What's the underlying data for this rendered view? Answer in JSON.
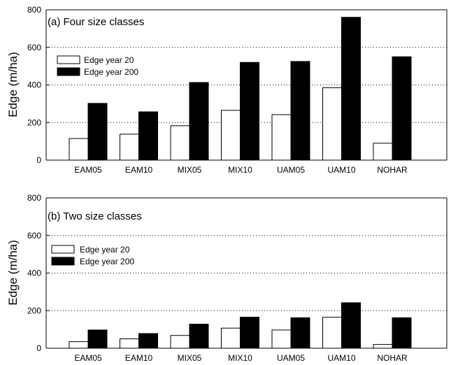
{
  "chart_data": [
    {
      "type": "bar",
      "title": "(a)   Four size classes",
      "xlabel": "",
      "ylabel": "Edge (m/ha)",
      "ylim": [
        0,
        800
      ],
      "yticks": [
        0,
        200,
        400,
        600,
        800
      ],
      "grid": "horizontal dotted",
      "legend_position": "upper-left",
      "categories": [
        "EAM05",
        "EAM10",
        "MIX05",
        "MIX10",
        "UAM05",
        "UAM10",
        "NOHAR"
      ],
      "series": [
        {
          "name": "Edge year 20",
          "color": "#ffffff",
          "values": [
            115,
            138,
            183,
            265,
            242,
            385,
            90
          ]
        },
        {
          "name": "Edge year 200",
          "color": "#000000",
          "values": [
            302,
            257,
            413,
            520,
            525,
            760,
            550
          ]
        }
      ]
    },
    {
      "type": "bar",
      "title": "(b)   Two size classes",
      "xlabel": "",
      "ylabel": "Edge (m/ha)",
      "ylim": [
        0,
        800
      ],
      "yticks": [
        0,
        200,
        400,
        600,
        800
      ],
      "grid": "horizontal dotted",
      "legend_position": "upper-left",
      "categories": [
        "EAM05",
        "EAM10",
        "MIX05",
        "MIX10",
        "UAM05",
        "UAM10",
        "NOHAR"
      ],
      "series": [
        {
          "name": "Edge year 20",
          "color": "#ffffff",
          "values": [
            35,
            50,
            68,
            107,
            97,
            165,
            20
          ]
        },
        {
          "name": "Edge year 200",
          "color": "#000000",
          "values": [
            97,
            78,
            128,
            165,
            162,
            242,
            162
          ]
        }
      ]
    }
  ]
}
